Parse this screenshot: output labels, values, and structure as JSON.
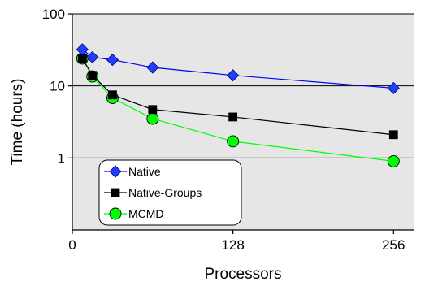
{
  "chart_data": {
    "type": "line",
    "xlabel": "Processors",
    "ylabel": "Time (hours)",
    "x_ticks": [
      0,
      128,
      256
    ],
    "x_tick_labels": [
      "0",
      "128",
      "256"
    ],
    "xlim": [
      0,
      272
    ],
    "y_scale": "log",
    "y_ticks": [
      1,
      10,
      100
    ],
    "y_tick_labels": [
      "1",
      "10",
      "100"
    ],
    "ylim": [
      0.1,
      100
    ],
    "grid": "horizontal at 1, 10, 100",
    "legend_position": "bottom-left",
    "series": [
      {
        "name": "Native",
        "color": "#0000ff",
        "marker": "diamond",
        "marker_color": "#1f3fff",
        "x": [
          8,
          16,
          32,
          64,
          128,
          256
        ],
        "y": [
          32,
          25,
          23,
          18,
          14,
          9.3
        ]
      },
      {
        "name": "Native-Groups",
        "color": "#000000",
        "marker": "square",
        "marker_color": "#000000",
        "x": [
          8,
          16,
          32,
          64,
          128,
          256
        ],
        "y": [
          24,
          14,
          7.5,
          4.7,
          3.7,
          2.1
        ]
      },
      {
        "name": "MCMD",
        "color": "#00ff00",
        "marker": "circle",
        "marker_color": "#00ff00",
        "x": [
          8,
          16,
          32,
          64,
          128,
          256
        ],
        "y": [
          24,
          13.5,
          6.8,
          3.5,
          1.7,
          0.9
        ]
      }
    ],
    "plot_background": "#e6e6e6"
  }
}
